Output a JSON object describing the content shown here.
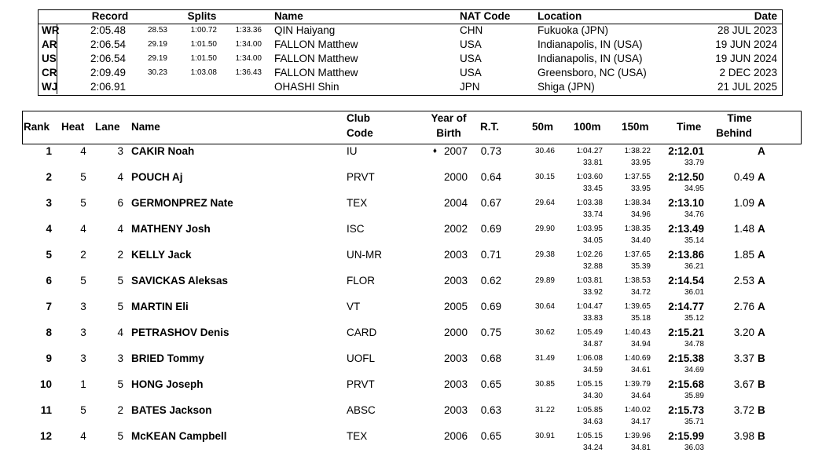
{
  "records": {
    "header": [
      "Record",
      "Splits",
      "Name",
      "NAT Code",
      "Location",
      "Date"
    ],
    "rows": [
      {
        "code": "WR",
        "time": "2:05.48",
        "splits": [
          "28.53",
          "1:00.72",
          "1:33.36"
        ],
        "name": "QIN Haiyang",
        "nat": "CHN",
        "location": "Fukuoka (JPN)",
        "date": "28 JUL 2023"
      },
      {
        "code": "AR",
        "time": "2:06.54",
        "splits": [
          "29.19",
          "1:01.50",
          "1:34.00"
        ],
        "name": "FALLON Matthew",
        "nat": "USA",
        "location": "Indianapolis, IN (USA)",
        "date": "19 JUN 2024"
      },
      {
        "code": "US",
        "time": "2:06.54",
        "splits": [
          "29.19",
          "1:01.50",
          "1:34.00"
        ],
        "name": "FALLON Matthew",
        "nat": "USA",
        "location": "Indianapolis, IN (USA)",
        "date": "19 JUN 2024"
      },
      {
        "code": "CR",
        "time": "2:09.49",
        "splits": [
          "30.23",
          "1:03.08",
          "1:36.43"
        ],
        "name": "FALLON Matthew",
        "nat": "USA",
        "location": "Greensboro, NC (USA)",
        "date": "2 DEC 2023"
      },
      {
        "code": "WJ",
        "time": "2:06.91",
        "splits": [],
        "name": "OHASHI Shin",
        "nat": "JPN",
        "location": "Shiga (JPN)",
        "date": "21 JUL 2025"
      }
    ]
  },
  "results": {
    "header": {
      "rank": "Rank",
      "heat": "Heat",
      "lane": "Lane",
      "name": "Name",
      "club": [
        "Club",
        "Code"
      ],
      "yob": [
        "Year of",
        "Birth"
      ],
      "rt": "R.T.",
      "s50": "50m",
      "s100": "100m",
      "s150": "150m",
      "time": "Time",
      "behind": [
        "Time",
        "Behind"
      ]
    },
    "rows": [
      {
        "rank": "1",
        "heat": "4",
        "lane": "3",
        "name": "CAKIR Noah",
        "club": "IU",
        "marker": "♦",
        "yob": "2007",
        "rt": "0.73",
        "s50": "30.46",
        "s100": "1:04.27",
        "s150": "1:38.22",
        "time": "2:12.01",
        "qual": "A",
        "laps": [
          "33.81",
          "33.95",
          "33.79"
        ]
      },
      {
        "rank": "2",
        "heat": "5",
        "lane": "4",
        "name": "POUCH Aj",
        "club": "PRVT",
        "yob": "2000",
        "rt": "0.64",
        "s50": "30.15",
        "s100": "1:03.60",
        "s150": "1:37.55",
        "time": "2:12.50",
        "behind": "0.49",
        "qual": "A",
        "laps": [
          "33.45",
          "33.95",
          "34.95"
        ]
      },
      {
        "rank": "3",
        "heat": "5",
        "lane": "6",
        "name": "GERMONPREZ Nate",
        "club": "TEX",
        "yob": "2004",
        "rt": "0.67",
        "s50": "29.64",
        "s100": "1:03.38",
        "s150": "1:38.34",
        "time": "2:13.10",
        "behind": "1.09",
        "qual": "A",
        "laps": [
          "33.74",
          "34.96",
          "34.76"
        ]
      },
      {
        "rank": "4",
        "heat": "4",
        "lane": "4",
        "name": "MATHENY Josh",
        "club": "ISC",
        "yob": "2002",
        "rt": "0.69",
        "s50": "29.90",
        "s100": "1:03.95",
        "s150": "1:38.35",
        "time": "2:13.49",
        "behind": "1.48",
        "qual": "A",
        "laps": [
          "34.05",
          "34.40",
          "35.14"
        ]
      },
      {
        "rank": "5",
        "heat": "2",
        "lane": "2",
        "name": "KELLY Jack",
        "club": "UN-MR",
        "yob": "2003",
        "rt": "0.71",
        "s50": "29.38",
        "s100": "1:02.26",
        "s150": "1:37.65",
        "time": "2:13.86",
        "behind": "1.85",
        "qual": "A",
        "laps": [
          "32.88",
          "35.39",
          "36.21"
        ]
      },
      {
        "rank": "6",
        "heat": "5",
        "lane": "5",
        "name": "SAVICKAS Aleksas",
        "club": "FLOR",
        "yob": "2003",
        "rt": "0.62",
        "s50": "29.89",
        "s100": "1:03.81",
        "s150": "1:38.53",
        "time": "2:14.54",
        "behind": "2.53",
        "qual": "A",
        "laps": [
          "33.92",
          "34.72",
          "36.01"
        ]
      },
      {
        "rank": "7",
        "heat": "3",
        "lane": "5",
        "name": "MARTIN Eli",
        "club": "VT",
        "yob": "2005",
        "rt": "0.69",
        "s50": "30.64",
        "s100": "1:04.47",
        "s150": "1:39.65",
        "time": "2:14.77",
        "behind": "2.76",
        "qual": "A",
        "laps": [
          "33.83",
          "35.18",
          "35.12"
        ]
      },
      {
        "rank": "8",
        "heat": "3",
        "lane": "4",
        "name": "PETRASHOV Denis",
        "club": "CARD",
        "yob": "2000",
        "rt": "0.75",
        "s50": "30.62",
        "s100": "1:05.49",
        "s150": "1:40.43",
        "time": "2:15.21",
        "behind": "3.20",
        "qual": "A",
        "laps": [
          "34.87",
          "34.94",
          "34.78"
        ]
      },
      {
        "rank": "9",
        "heat": "3",
        "lane": "3",
        "name": "BRIED Tommy",
        "club": "UOFL",
        "yob": "2003",
        "rt": "0.68",
        "s50": "31.49",
        "s100": "1:06.08",
        "s150": "1:40.69",
        "time": "2:15.38",
        "behind": "3.37",
        "qual": "B",
        "laps": [
          "34.59",
          "34.61",
          "34.69"
        ]
      },
      {
        "rank": "10",
        "heat": "1",
        "lane": "5",
        "name": "HONG Joseph",
        "club": "PRVT",
        "yob": "2003",
        "rt": "0.65",
        "s50": "30.85",
        "s100": "1:05.15",
        "s150": "1:39.79",
        "time": "2:15.68",
        "behind": "3.67",
        "qual": "B",
        "laps": [
          "34.30",
          "34.64",
          "35.89"
        ]
      },
      {
        "rank": "11",
        "heat": "5",
        "lane": "2",
        "name": "BATES Jackson",
        "club": "ABSC",
        "yob": "2003",
        "rt": "0.63",
        "s50": "31.22",
        "s100": "1:05.85",
        "s150": "1:40.02",
        "time": "2:15.73",
        "behind": "3.72",
        "qual": "B",
        "laps": [
          "34.63",
          "34.17",
          "35.71"
        ]
      },
      {
        "rank": "12",
        "heat": "4",
        "lane": "5",
        "name": "McKEAN Campbell",
        "club": "TEX",
        "yob": "2006",
        "rt": "0.65",
        "s50": "30.91",
        "s100": "1:05.15",
        "s150": "1:39.96",
        "time": "2:15.99",
        "behind": "3.98",
        "qual": "B",
        "laps": [
          "34.24",
          "34.81",
          "36.03"
        ]
      }
    ]
  }
}
